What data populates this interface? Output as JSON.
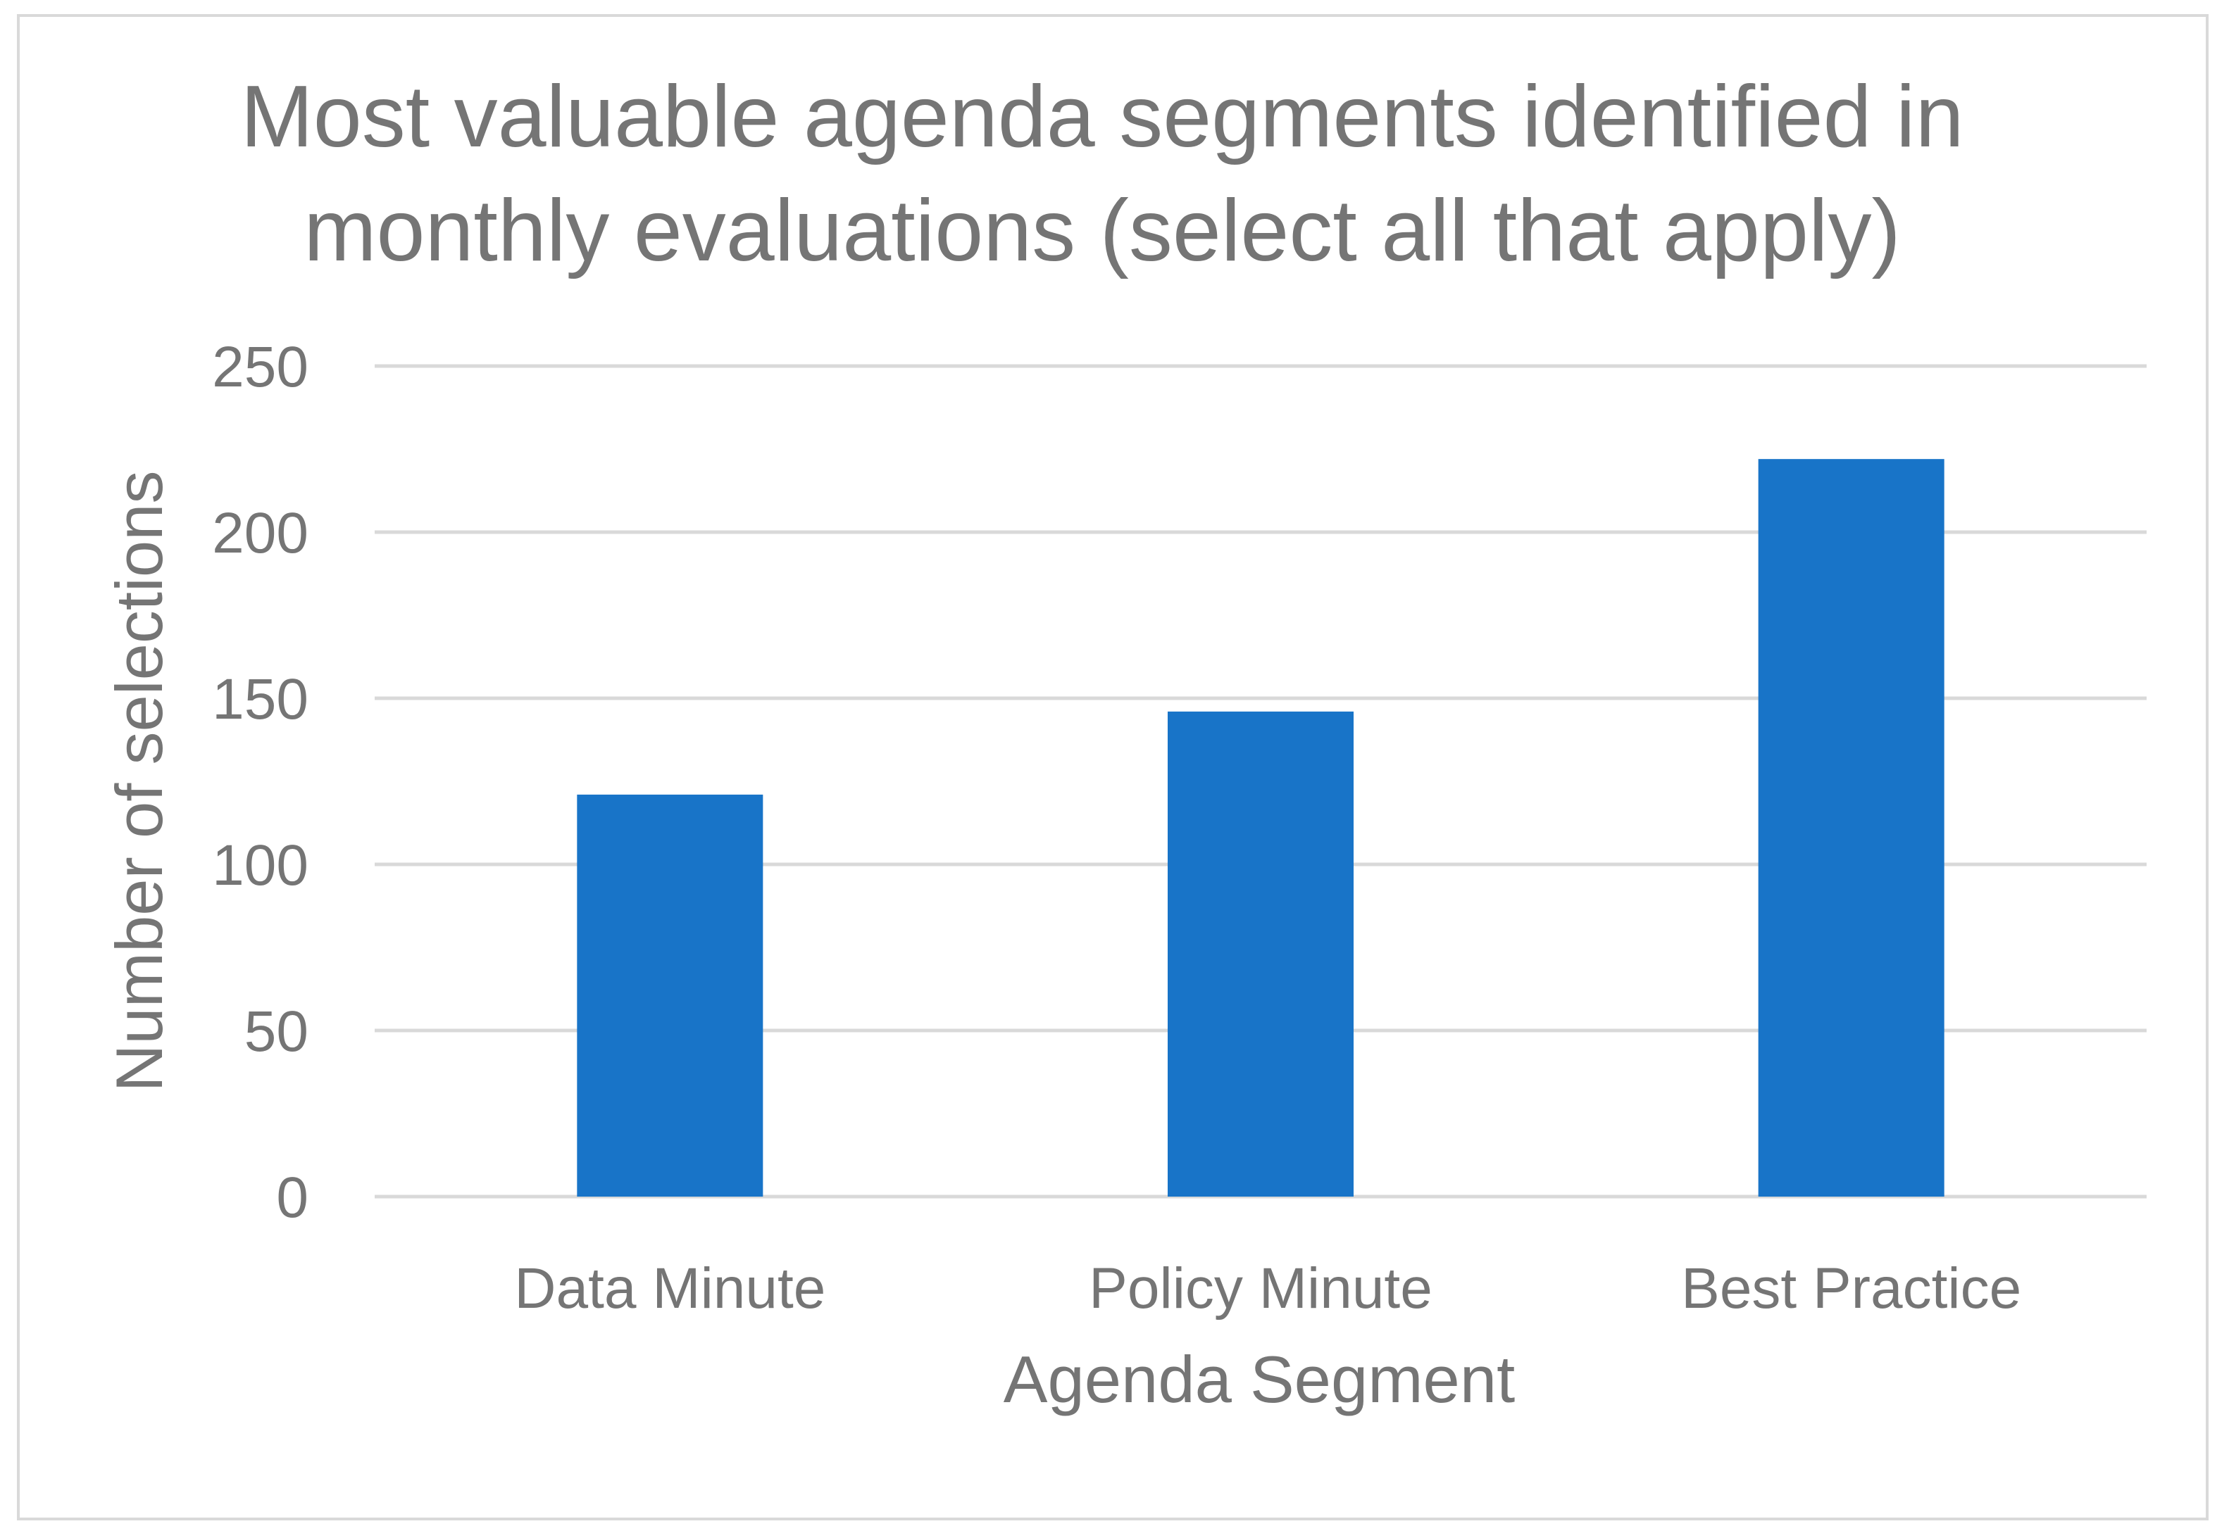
{
  "chart_data": {
    "type": "bar",
    "title": "Most valuable agenda segments identified in monthly evaluations (select all that apply)",
    "title_lines": [
      "Most valuable agenda segments identified in",
      "monthly evaluations (select all that apply)"
    ],
    "categories": [
      "Data Minute",
      "Policy Minute",
      "Best Practice"
    ],
    "series": [
      {
        "name": "Number of selections",
        "values": [
          121,
          146,
          222
        ]
      }
    ],
    "xlabel": "Agenda Segment",
    "ylabel": "Number of selections",
    "ylim": [
      0,
      250
    ],
    "yticks": [
      0,
      50,
      100,
      150,
      200,
      250
    ],
    "grid": true,
    "legend": "none",
    "colors": {
      "bar": "#1874c8",
      "text": "#757575",
      "grid": "#d9d9d9"
    }
  }
}
